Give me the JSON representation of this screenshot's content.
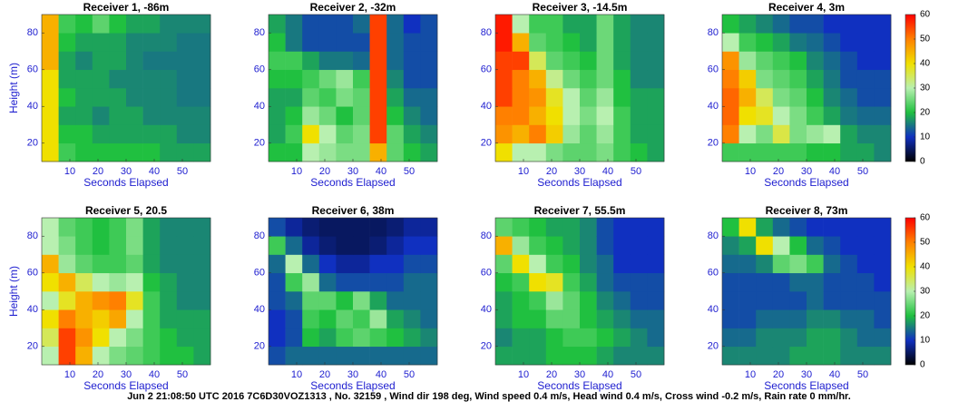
{
  "chart_data": [
    {
      "type": "heatmap",
      "title": "Receiver 1, -86m",
      "x_label": "Seconds Elapsed",
      "y_label": "Height (m)",
      "xlim": [
        0,
        60
      ],
      "ylim": [
        10,
        90
      ],
      "xticks": [
        10,
        20,
        30,
        40,
        50
      ],
      "yticks": [
        20,
        40,
        60,
        80
      ],
      "clim": [
        0,
        60
      ],
      "z": [
        [
          40,
          22,
          20,
          20,
          20,
          20,
          20,
          18,
          18,
          18
        ],
        [
          40,
          20,
          20,
          18,
          18,
          18,
          18,
          18,
          16,
          16
        ],
        [
          40,
          18,
          18,
          16,
          18,
          18,
          16,
          16,
          16,
          16
        ],
        [
          40,
          20,
          18,
          18,
          18,
          16,
          16,
          16,
          15,
          15
        ],
        [
          40,
          18,
          18,
          18,
          16,
          16,
          16,
          16,
          15,
          15
        ],
        [
          45,
          18,
          16,
          18,
          18,
          16,
          15,
          15,
          15,
          15
        ],
        [
          45,
          20,
          18,
          18,
          18,
          16,
          16,
          16,
          15,
          15
        ],
        [
          45,
          22,
          20,
          24,
          20,
          18,
          18,
          16,
          16,
          16
        ]
      ]
    },
    {
      "type": "heatmap",
      "title": "Receiver 2, -32m",
      "x_label": "Seconds Elapsed",
      "xlim": [
        0,
        60
      ],
      "ylim": [
        10,
        90
      ],
      "xticks": [
        10,
        20,
        30,
        40,
        50
      ],
      "yticks": [
        20,
        40,
        60,
        80
      ],
      "clim": [
        0,
        60
      ],
      "z": [
        [
          20,
          20,
          30,
          28,
          26,
          26,
          45,
          24,
          20,
          18
        ],
        [
          18,
          22,
          40,
          30,
          24,
          26,
          55,
          24,
          18,
          16
        ],
        [
          18,
          20,
          28,
          25,
          20,
          24,
          55,
          20,
          16,
          14
        ],
        [
          18,
          18,
          24,
          22,
          26,
          24,
          55,
          18,
          14,
          14
        ],
        [
          20,
          20,
          22,
          25,
          28,
          22,
          55,
          16,
          12,
          12
        ],
        [
          22,
          22,
          18,
          15,
          15,
          14,
          55,
          14,
          12,
          12
        ],
        [
          20,
          15,
          12,
          12,
          12,
          12,
          55,
          14,
          12,
          12
        ],
        [
          18,
          15,
          12,
          12,
          12,
          14,
          55,
          14,
          10,
          12
        ]
      ]
    },
    {
      "type": "heatmap",
      "title": "Receiver 3, -14.5m",
      "x_label": "Seconds Elapsed",
      "xlim": [
        0,
        60
      ],
      "ylim": [
        10,
        90
      ],
      "xticks": [
        10,
        20,
        30,
        40,
        50
      ],
      "yticks": [
        20,
        40,
        60,
        80
      ],
      "clim": [
        0,
        60
      ],
      "z": [
        [
          40,
          30,
          30,
          26,
          24,
          24,
          26,
          22,
          20,
          18
        ],
        [
          48,
          45,
          50,
          42,
          28,
          24,
          28,
          22,
          18,
          18
        ],
        [
          50,
          50,
          45,
          40,
          30,
          26,
          30,
          22,
          18,
          18
        ],
        [
          55,
          50,
          48,
          38,
          30,
          24,
          28,
          20,
          18,
          18
        ],
        [
          55,
          50,
          45,
          32,
          25,
          22,
          25,
          20,
          16,
          16
        ],
        [
          55,
          55,
          35,
          24,
          22,
          20,
          25,
          18,
          16,
          16
        ],
        [
          58,
          45,
          24,
          22,
          20,
          18,
          25,
          18,
          16,
          16
        ],
        [
          58,
          30,
          22,
          22,
          18,
          18,
          25,
          18,
          16,
          16
        ]
      ]
    },
    {
      "type": "heatmap",
      "title": "Receiver 4, 3m",
      "x_label": "Seconds Elapsed",
      "xlim": [
        0,
        60
      ],
      "ylim": [
        10,
        90
      ],
      "xticks": [
        10,
        20,
        30,
        40,
        50
      ],
      "yticks": [
        20,
        40,
        60,
        80
      ],
      "clim": [
        0,
        60
      ],
      "cticks": [
        0,
        10,
        20,
        30,
        40,
        50,
        60
      ],
      "z": [
        [
          22,
          22,
          22,
          22,
          22,
          20,
          20,
          18,
          18,
          16
        ],
        [
          50,
          30,
          26,
          36,
          26,
          28,
          30,
          18,
          16,
          16
        ],
        [
          52,
          40,
          38,
          30,
          26,
          22,
          18,
          15,
          14,
          14
        ],
        [
          52,
          45,
          35,
          26,
          24,
          20,
          16,
          14,
          12,
          12
        ],
        [
          50,
          42,
          26,
          24,
          22,
          18,
          15,
          12,
          12,
          12
        ],
        [
          48,
          28,
          24,
          22,
          20,
          16,
          14,
          12,
          10,
          10
        ],
        [
          30,
          22,
          20,
          18,
          15,
          14,
          12,
          10,
          10,
          10
        ],
        [
          20,
          18,
          16,
          14,
          12,
          12,
          10,
          10,
          10,
          10
        ]
      ]
    },
    {
      "type": "heatmap",
      "title": "Receiver 5, 20.5",
      "x_label": "Seconds Elapsed",
      "y_label": "Height (m)",
      "xlim": [
        0,
        60
      ],
      "ylim": [
        10,
        90
      ],
      "xticks": [
        10,
        20,
        30,
        40,
        50
      ],
      "yticks": [
        20,
        40,
        60,
        80
      ],
      "clim": [
        0,
        60
      ],
      "z": [
        [
          30,
          55,
          45,
          30,
          26,
          24,
          22,
          20,
          20,
          18
        ],
        [
          35,
          55,
          48,
          40,
          30,
          26,
          22,
          20,
          18,
          18
        ],
        [
          40,
          50,
          45,
          42,
          46,
          30,
          22,
          18,
          18,
          18
        ],
        [
          30,
          38,
          45,
          48,
          50,
          38,
          22,
          18,
          16,
          16
        ],
        [
          40,
          45,
          35,
          30,
          28,
          30,
          20,
          18,
          16,
          16
        ],
        [
          45,
          28,
          24,
          22,
          22,
          24,
          18,
          16,
          16,
          16
        ],
        [
          30,
          26,
          22,
          20,
          22,
          26,
          18,
          16,
          16,
          16
        ],
        [
          30,
          24,
          22,
          20,
          22,
          26,
          18,
          16,
          16,
          16
        ]
      ]
    },
    {
      "type": "heatmap",
      "title": "Receiver 6, 38m",
      "x_label": "Seconds Elapsed",
      "xlim": [
        0,
        60
      ],
      "ylim": [
        10,
        90
      ],
      "xticks": [
        10,
        20,
        30,
        40,
        50
      ],
      "yticks": [
        20,
        40,
        60,
        80
      ],
      "clim": [
        0,
        60
      ],
      "z": [
        [
          12,
          14,
          14,
          14,
          14,
          14,
          14,
          14,
          14,
          14
        ],
        [
          10,
          12,
          20,
          18,
          22,
          24,
          22,
          20,
          18,
          16
        ],
        [
          10,
          12,
          22,
          20,
          24,
          22,
          28,
          18,
          16,
          14
        ],
        [
          12,
          14,
          24,
          24,
          20,
          26,
          18,
          14,
          14,
          14
        ],
        [
          12,
          22,
          28,
          14,
          12,
          12,
          12,
          12,
          14,
          14
        ],
        [
          14,
          30,
          14,
          10,
          8,
          8,
          10,
          10,
          12,
          12
        ],
        [
          22,
          14,
          8,
          6,
          5,
          5,
          6,
          8,
          10,
          10
        ],
        [
          12,
          8,
          6,
          5,
          5,
          5,
          5,
          6,
          8,
          8
        ]
      ]
    },
    {
      "type": "heatmap",
      "title": "Receiver 7, 55.5m",
      "x_label": "Seconds Elapsed",
      "xlim": [
        0,
        60
      ],
      "ylim": [
        10,
        90
      ],
      "xticks": [
        10,
        20,
        30,
        40,
        50
      ],
      "yticks": [
        20,
        40,
        60,
        80
      ],
      "clim": [
        0,
        60
      ],
      "z": [
        [
          18,
          18,
          18,
          20,
          20,
          20,
          18,
          16,
          16,
          16
        ],
        [
          16,
          18,
          18,
          20,
          22,
          22,
          20,
          18,
          16,
          14
        ],
        [
          18,
          20,
          20,
          24,
          24,
          20,
          18,
          16,
          14,
          14
        ],
        [
          18,
          20,
          22,
          28,
          24,
          20,
          16,
          14,
          12,
          12
        ],
        [
          20,
          22,
          40,
          38,
          22,
          18,
          14,
          12,
          12,
          12
        ],
        [
          24,
          40,
          30,
          22,
          20,
          16,
          14,
          10,
          10,
          10
        ],
        [
          45,
          28,
          22,
          20,
          18,
          16,
          12,
          10,
          10,
          10
        ],
        [
          24,
          22,
          20,
          18,
          18,
          16,
          12,
          10,
          10,
          10
        ]
      ]
    },
    {
      "type": "heatmap",
      "title": "Receiver 8, 73m",
      "x_label": "Seconds Elapsed",
      "xlim": [
        0,
        60
      ],
      "ylim": [
        10,
        90
      ],
      "xticks": [
        10,
        20,
        30,
        40,
        50
      ],
      "yticks": [
        20,
        40,
        60,
        80
      ],
      "clim": [
        0,
        60
      ],
      "cticks": [
        0,
        10,
        20,
        30,
        40,
        50,
        60
      ],
      "z": [
        [
          16,
          16,
          16,
          16,
          18,
          18,
          18,
          16,
          16,
          16
        ],
        [
          14,
          14,
          16,
          16,
          16,
          18,
          18,
          16,
          14,
          14
        ],
        [
          12,
          12,
          14,
          14,
          14,
          16,
          16,
          14,
          14,
          12
        ],
        [
          12,
          12,
          12,
          12,
          12,
          14,
          12,
          12,
          12,
          12
        ],
        [
          12,
          12,
          12,
          12,
          14,
          14,
          12,
          12,
          12,
          10
        ],
        [
          14,
          14,
          16,
          24,
          26,
          22,
          14,
          12,
          10,
          10
        ],
        [
          16,
          18,
          40,
          30,
          20,
          14,
          12,
          10,
          10,
          10
        ],
        [
          20,
          40,
          18,
          14,
          12,
          10,
          10,
          10,
          10,
          10
        ]
      ]
    }
  ],
  "colormap": [
    "#000000",
    "#1030c0",
    "#20c040",
    "#b8f0b0",
    "#f0e000",
    "#ff8000",
    "#ff0000"
  ],
  "caption": "Jun 2 21:08:50 UTC 2016 7C6D30VOZ1313 , No. 32159 , Wind dir 198  deg, Wind speed 0.4  m/s, Head wind 0.4  m/s, Cross wind  -0.2  m/s, Rain rate 0 mm/hr."
}
